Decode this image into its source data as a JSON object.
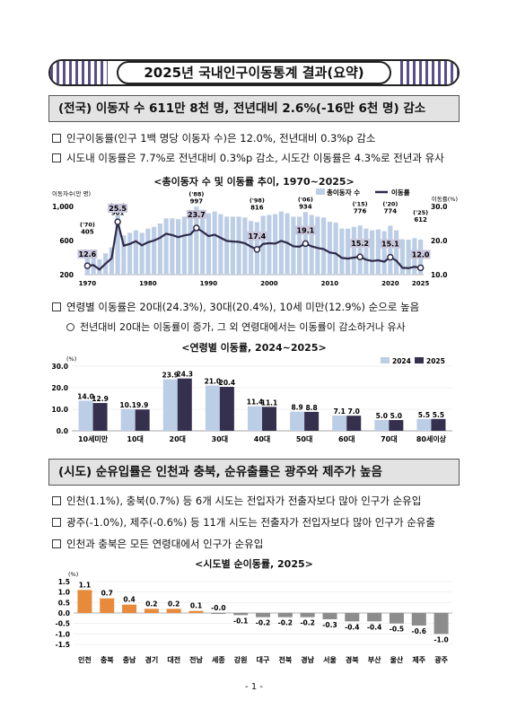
{
  "title": "2025년 국내인구이동통계 결과(요약)",
  "section1": {
    "heading": "(전국) 이동자 수 611만 8천 명, 전년대비 2.6%(-16만 6천 명) 감소",
    "bullets": [
      "인구이동률(인구 1백 명당 이동자 수)은 12.0%, 전년대비 0.3%p 감소",
      "시도내 이동률은 7.7%로 전년대비 0.3%p 감소, 시도간 이동률은 4.3%로 전년과 유사"
    ]
  },
  "chart1": {
    "title": "<총이동자 수 및 이동률 추이, 1970~2025>",
    "ylabel_left": "이동자수(만 명)",
    "ylabel_right": "이동률(%)",
    "legend": [
      "총이동자 수",
      "이동률"
    ],
    "left_ticks": [
      "1,000",
      "600",
      "200"
    ],
    "right_ticks": [
      "30.0",
      "20.0",
      "10.0"
    ],
    "x_ticks": [
      "1970",
      "1980",
      "1990",
      "2000",
      "2010",
      "2020",
      "2025"
    ],
    "annotations": {
      "y70": "('70)",
      "v70": "405",
      "r70": "12.6",
      "y75": "('75)",
      "v75": "901",
      "r75": "25.5",
      "y88": "('88)",
      "v88": "997",
      "r88": "23.7",
      "y98": "('98)",
      "v98": "816",
      "r98": "17.4",
      "y06": "('06)",
      "v06": "934",
      "r06": "19.1",
      "y15": "('15)",
      "v15": "776",
      "r15": "15.2",
      "y20": "('20)",
      "v20": "774",
      "r20": "15.1",
      "y25": "('25)",
      "v25": "612",
      "r25": "12.0"
    }
  },
  "chart_data": [
    {
      "type": "bar",
      "title": "<총이동자 수 및 이동률 추이, 1970~2025>",
      "x": [
        1970,
        1971,
        1972,
        1973,
        1974,
        1975,
        1976,
        1977,
        1978,
        1979,
        1980,
        1981,
        1982,
        1983,
        1984,
        1985,
        1986,
        1987,
        1988,
        1989,
        1990,
        1991,
        1992,
        1993,
        1994,
        1995,
        1996,
        1997,
        1998,
        1999,
        2000,
        2001,
        2002,
        2003,
        2004,
        2005,
        2006,
        2007,
        2008,
        2009,
        2010,
        2011,
        2012,
        2013,
        2014,
        2015,
        2016,
        2017,
        2018,
        2019,
        2020,
        2021,
        2022,
        2023,
        2024,
        2025
      ],
      "series": [
        {
          "name": "총이동자 수",
          "axis": "left",
          "values": [
            405,
            410,
            380,
            450,
            520,
            901,
            660,
            690,
            720,
            690,
            740,
            760,
            800,
            860,
            860,
            850,
            880,
            900,
            997,
            960,
            920,
            940,
            910,
            880,
            880,
            880,
            870,
            830,
            816,
            890,
            900,
            910,
            940,
            920,
            880,
            880,
            934,
            900,
            880,
            870,
            820,
            810,
            740,
            740,
            760,
            776,
            740,
            720,
            730,
            710,
            774,
            720,
            615,
            610,
            628,
            612
          ]
        },
        {
          "name": "이동률",
          "type": "line",
          "axis": "right",
          "values": [
            12.6,
            12.8,
            11.5,
            13.2,
            14.8,
            25.5,
            18.5,
            19.0,
            19.8,
            18.6,
            19.5,
            20.0,
            20.8,
            22.0,
            21.6,
            21.0,
            21.5,
            21.8,
            23.7,
            22.6,
            21.3,
            21.7,
            20.8,
            19.9,
            19.7,
            19.6,
            19.2,
            18.2,
            17.4,
            19.0,
            19.2,
            19.1,
            19.9,
            19.3,
            18.3,
            18.2,
            19.1,
            18.3,
            17.8,
            17.5,
            16.5,
            16.2,
            14.9,
            14.7,
            15.0,
            15.2,
            14.4,
            14.0,
            14.2,
            13.8,
            15.1,
            14.1,
            12.0,
            11.9,
            12.3,
            12.0
          ]
        }
      ],
      "ylim_left": [
        200,
        1000
      ],
      "ylim_right": [
        10,
        30
      ],
      "legend_position": "top-right"
    },
    {
      "type": "bar",
      "title": "<연령별 이동률, 2024~2025>",
      "categories": [
        "10세미만",
        "10대",
        "20대",
        "30대",
        "40대",
        "50대",
        "60대",
        "70대",
        "80세이상"
      ],
      "series": [
        {
          "name": "2024",
          "values": [
            14.0,
            10.1,
            23.9,
            21.0,
            11.4,
            8.9,
            7.1,
            5.0,
            5.5
          ]
        },
        {
          "name": "2025",
          "values": [
            12.9,
            9.9,
            24.3,
            20.4,
            11.1,
            8.8,
            7.0,
            5.0,
            5.5
          ]
        }
      ],
      "ylabel": "(%)",
      "ylim": [
        0,
        30
      ],
      "legend_position": "top-right"
    },
    {
      "type": "bar",
      "title": "<시도별 순이동률, 2025>",
      "categories": [
        "인천",
        "충북",
        "충남",
        "경기",
        "대전",
        "전남",
        "세종",
        "강원",
        "대구",
        "전북",
        "경남",
        "서울",
        "경북",
        "부산",
        "울산",
        "제주",
        "광주"
      ],
      "values": [
        1.1,
        0.7,
        0.4,
        0.2,
        0.2,
        0.1,
        -0.0,
        -0.1,
        -0.2,
        -0.2,
        -0.2,
        -0.3,
        -0.4,
        -0.4,
        -0.5,
        -0.6,
        -1.0
      ],
      "value_labels": [
        "1.1",
        "0.7",
        "0.4",
        "0.2",
        "0.2",
        "0.1",
        "-0.0",
        "-0.1",
        "-0.2",
        "-0.2",
        "-0.2",
        "-0.3",
        "-0.4",
        "-0.4",
        "-0.5",
        "-0.6",
        "-1.0"
      ],
      "ylabel": "(%)",
      "ylim": [
        -1.5,
        1.5
      ]
    }
  ],
  "section1b": {
    "bullet": "연령별 이동률은 20대(24.3%), 30대(20.4%), 10세 미만(12.9%) 순으로 높음",
    "sub_bullet": "전년대비 20대는 이동률이 증가, 그 외 연령대에서는 이동률이 감소하거나 유사"
  },
  "chart2": {
    "title": "<연령별 이동률, 2024~2025>",
    "ylabel": "(%)",
    "y_ticks": [
      "30.0",
      "20.0",
      "10.0",
      "0.0"
    ],
    "legend": [
      "2024",
      "2025"
    ],
    "value_labels_2024": [
      "14.0",
      "10.1",
      "23.9",
      "21.0",
      "11.4",
      "8.9",
      "7.1",
      "5.0",
      "5.5"
    ],
    "value_labels_2025": [
      "12.9",
      "9.9",
      "24.3",
      "20.4",
      "11.1",
      "8.8",
      "7.0",
      "5.0",
      "5.5"
    ]
  },
  "section2": {
    "heading": "(시도) 순유입률은 인천과 충북, 순유출률은 광주와 제주가 높음",
    "bullets": [
      "인천(1.1%), 충북(0.7%) 등 6개 시도는 전입자가 전출자보다 많아 인구가 순유입",
      "광주(-1.0%), 제주(-0.6%) 등 11개 시도는 전출자가 전입자보다 많아 인구가 순유출",
      "인천과 충북은 모든 연령대에서 인구가 순유입"
    ]
  },
  "chart3": {
    "title": "<시도별 순이동률, 2025>",
    "ylabel": "(%)",
    "y_ticks": [
      "1.5",
      "1.0",
      "0.5",
      "0.0",
      "-0.5",
      "-1.0",
      "-1.5"
    ]
  },
  "colors": {
    "bar_light": "#bccde6",
    "line_dark": "#2e2a4a",
    "bar_2024": "#bccde6",
    "bar_2025": "#35304d",
    "bar_orange": "#e88a3c",
    "bar_gray": "#8c8c8c",
    "annotation_box": "#c9c6dc"
  },
  "page_number": "- 1 -"
}
